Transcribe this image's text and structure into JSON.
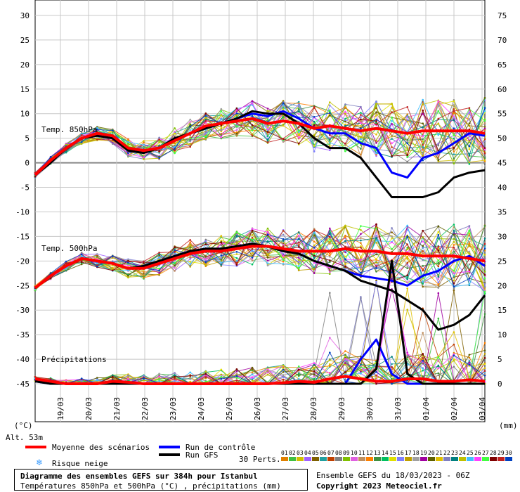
{
  "chart_data": {
    "type": "line",
    "title": "Diagramme des ensembles GEFS sur 384h pour Istanbul",
    "subtitle": "Températures 850hPa et 500hPa (°C) , précipitations (mm)",
    "x_ticks": [
      "19/03",
      "20/03",
      "21/03",
      "22/03",
      "23/03",
      "24/03",
      "25/03",
      "26/03",
      "27/03",
      "28/03",
      "29/03",
      "30/03",
      "31/03",
      "01/04",
      "02/04",
      "03/04"
    ],
    "y_left_ticks": [
      30,
      25,
      20,
      15,
      10,
      5,
      0,
      -5,
      -10,
      -15,
      -20,
      -25,
      -30,
      -35,
      -40,
      -45
    ],
    "y_right_ticks": [
      75,
      70,
      65,
      60,
      55,
      50,
      45,
      40,
      35,
      30,
      25,
      20,
      15,
      10,
      5,
      0
    ],
    "y_left_unit": "(°C)",
    "y_right_unit": "(mm)",
    "ylim_temp": [
      -45,
      30
    ],
    "ylim_precip": [
      0,
      75
    ],
    "panel_labels": {
      "t850": "Temp. 850hPa",
      "t500": "Temp. 500hPa",
      "precip": "Précipitations"
    },
    "altitude": "Alt. 53m",
    "days_start": 18.3,
    "series": [
      {
        "name": "Moyenne des scénarios",
        "panel": "t850",
        "color": "#ff0000",
        "values": [
          -2.5,
          0.5,
          3,
          5,
          6,
          5.5,
          3,
          2.5,
          3,
          4.5,
          6,
          7.5,
          8,
          8.5,
          9,
          8,
          8.5,
          8,
          7,
          7.5,
          7,
          6.5,
          7,
          6.5,
          6,
          6.5,
          6.5,
          6.5,
          6.5,
          6
        ]
      },
      {
        "name": "Run de contrôle",
        "panel": "t850",
        "color": "#0000ff",
        "values": [
          -2.5,
          0,
          3,
          5,
          5.5,
          5,
          2.5,
          2,
          3,
          5,
          6,
          7,
          8,
          9,
          10,
          9.5,
          10.5,
          9,
          7,
          6,
          6,
          4,
          3,
          -2,
          -3,
          1,
          2,
          4,
          6,
          5.5
        ]
      },
      {
        "name": "Run GFS",
        "panel": "t850",
        "color": "#000000",
        "values": [
          -2.5,
          0,
          3,
          5,
          5.5,
          5,
          2.5,
          2,
          3,
          5,
          6,
          7,
          8,
          9,
          10.5,
          10,
          10,
          8,
          5,
          3,
          3,
          1,
          -3,
          -7,
          -7,
          -7,
          -6,
          -3,
          -2,
          -1.5
        ]
      },
      {
        "name": "Moyenne des scénarios",
        "panel": "t500",
        "color": "#ff0000",
        "values": [
          -25.5,
          -23,
          -21,
          -19.5,
          -20,
          -20.5,
          -21.5,
          -21.5,
          -20.5,
          -19.5,
          -18.5,
          -18,
          -18,
          -17.5,
          -17,
          -17,
          -17.5,
          -18,
          -18,
          -18,
          -17.5,
          -18,
          -18,
          -18.5,
          -18.5,
          -19,
          -19,
          -19,
          -19.5,
          -20
        ]
      },
      {
        "name": "Run de contrôle",
        "panel": "t500",
        "color": "#0000ff",
        "values": [
          -25.5,
          -23,
          -21,
          -19.5,
          -20,
          -20.5,
          -21.5,
          -21,
          -20,
          -19,
          -18,
          -17.5,
          -17.5,
          -17,
          -16.5,
          -17,
          -18,
          -18.5,
          -20,
          -21,
          -22,
          -23,
          -23.5,
          -24,
          -25,
          -23,
          -22,
          -20,
          -19,
          -21
        ]
      },
      {
        "name": "Run GFS",
        "panel": "t500",
        "color": "#000000",
        "values": [
          -25.5,
          -23,
          -21,
          -19.5,
          -20,
          -20.5,
          -21.5,
          -21,
          -20,
          -19,
          -18,
          -17.5,
          -17.5,
          -17,
          -16.5,
          -17,
          -18,
          -18.5,
          -20,
          -21,
          -22,
          -24,
          -25,
          -26,
          -28,
          -30,
          -34,
          -33,
          -31,
          -27
        ]
      },
      {
        "name": "Moyenne des scénarios",
        "panel": "precip",
        "color": "#ff0000",
        "values": [
          1,
          0.5,
          0,
          0,
          0,
          0.5,
          0.3,
          0,
          0,
          0,
          0,
          0,
          0,
          0,
          0,
          0,
          0.2,
          0.5,
          0.3,
          1,
          1.5,
          1,
          0.5,
          0.5,
          1,
          1,
          0.5,
          0.5,
          0.8,
          0.5
        ]
      },
      {
        "name": "Run de contrôle",
        "panel": "precip",
        "color": "#0000ff",
        "values": [
          0.5,
          0,
          0,
          0,
          0,
          0,
          0,
          0,
          0,
          0,
          0,
          0,
          0,
          0,
          0,
          0,
          0,
          0,
          0,
          0,
          0,
          5,
          9,
          2,
          0,
          0,
          0,
          0,
          0,
          0
        ]
      },
      {
        "name": "Run GFS",
        "panel": "precip",
        "color": "#000000",
        "values": [
          0.5,
          0,
          0,
          0,
          0,
          0,
          0,
          0,
          0,
          0,
          0,
          0,
          0,
          0,
          0,
          0,
          0,
          0,
          0,
          0,
          0,
          0,
          3,
          25,
          2,
          0,
          0,
          0,
          0,
          0
        ]
      }
    ],
    "members": 30
  },
  "legend": {
    "mean": "Moyenne des scénarios",
    "control": "Run de contrôle",
    "gfs": "Run GFS",
    "snow": "Risque neige",
    "perts": "30 Perts."
  },
  "pert_numbers": [
    "01",
    "02",
    "03",
    "04",
    "05",
    "06",
    "07",
    "08",
    "09",
    "10",
    "11",
    "12",
    "13",
    "14",
    "15",
    "16",
    "17",
    "18",
    "19",
    "20",
    "21",
    "22",
    "23",
    "24",
    "25",
    "26",
    "27",
    "28",
    "29",
    "30"
  ],
  "pert_colors": [
    "#e08000",
    "#40c040",
    "#d0c000",
    "#a060ff",
    "#806000",
    "#20a0a0",
    "#c04000",
    "#808080",
    "#80c000",
    "#e060e0",
    "#c09060",
    "#ff8000",
    "#409040",
    "#00c060",
    "#e0e000",
    "#8080ff",
    "#c0a000",
    "#a0a0a0",
    "#a000a0",
    "#606000",
    "#e0c000",
    "#8080c0",
    "#008080",
    "#c0c000",
    "#40c0ff",
    "#ff40ff",
    "#40ff40",
    "#800000",
    "#c02020",
    "#0040c0"
  ],
  "footer": {
    "title": "Diagramme des ensembles GEFS sur 384h pour Istanbul",
    "subtitle": "Températures 850hPa et 500hPa (°C) , précipitations (mm)",
    "run": "Ensemble GEFS du 18/03/2023 - 06Z",
    "copyright": "Copyright 2023 Meteociel.fr"
  }
}
